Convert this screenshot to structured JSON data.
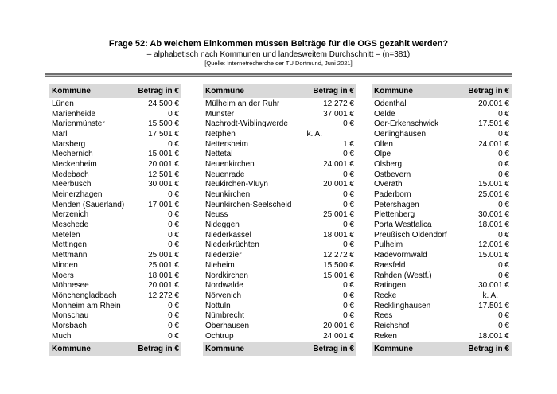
{
  "header": {
    "title": "Frage 52: Ab welchem Einkommen müssen Beiträge für die OGS gezahlt werden?",
    "subtitle": "– alphabetisch nach Kommunen und landesweitem Durchschnitt – (n=381)",
    "source": "[Quelle: Internetrecherche der TU Dortmund, Juni 2021]"
  },
  "table_labels": {
    "col_kommune": "Kommune",
    "col_betrag": "Betrag in €"
  },
  "colors": {
    "header_band": "#d9d9d9",
    "rule": "#6f6f6f",
    "text": "#000000"
  },
  "columns": [
    {
      "rows": [
        {
          "name": "Lünen",
          "value": "24.500 €"
        },
        {
          "name": "Marienheide",
          "value": "0 €"
        },
        {
          "name": "Marienmünster",
          "value": "15.500 €"
        },
        {
          "name": "Marl",
          "value": "17.501 €"
        },
        {
          "name": "Marsberg",
          "value": "0 €"
        },
        {
          "name": "Mechernich",
          "value": "15.001 €"
        },
        {
          "name": "Meckenheim",
          "value": "20.001 €"
        },
        {
          "name": "Medebach",
          "value": "12.501 €"
        },
        {
          "name": "Meerbusch",
          "value": "30.001 €"
        },
        {
          "name": "Meinerzhagen",
          "value": "0 €"
        },
        {
          "name": "Menden (Sauerland)",
          "value": "17.001 €"
        },
        {
          "name": "Merzenich",
          "value": "0 €"
        },
        {
          "name": "Meschede",
          "value": "0 €"
        },
        {
          "name": "Metelen",
          "value": "0 €"
        },
        {
          "name": "Mettingen",
          "value": "0 €"
        },
        {
          "name": "Mettmann",
          "value": "25.001 €"
        },
        {
          "name": "Minden",
          "value": "25.001 €"
        },
        {
          "name": "Moers",
          "value": "18.001 €"
        },
        {
          "name": "Möhnesee",
          "value": "20.001 €"
        },
        {
          "name": "Mönchengladbach",
          "value": "12.272 €"
        },
        {
          "name": "Monheim am Rhein",
          "value": "0 €"
        },
        {
          "name": "Monschau",
          "value": "0 €"
        },
        {
          "name": "Morsbach",
          "value": "0 €"
        },
        {
          "name": "Much",
          "value": "0 €"
        }
      ]
    },
    {
      "rows": [
        {
          "name": "Mülheim an der Ruhr",
          "value": "12.272 €"
        },
        {
          "name": "Münster",
          "value": "37.001 €"
        },
        {
          "name": "Nachrodt-Wiblingwerde",
          "value": "0 €"
        },
        {
          "name": "Netphen",
          "value": "k. A.",
          "pad": 40
        },
        {
          "name": "Nettersheim",
          "value": "1 €"
        },
        {
          "name": "Nettetal",
          "value": "0 €"
        },
        {
          "name": "Neuenkirchen",
          "value": "24.001 €"
        },
        {
          "name": "Neuenrade",
          "value": "0 €"
        },
        {
          "name": "Neukirchen-Vluyn",
          "value": "20.001 €"
        },
        {
          "name": "Neunkirchen",
          "value": "0 €"
        },
        {
          "name": "Neunkirchen-Seelscheid",
          "value": "0 €"
        },
        {
          "name": "Neuss",
          "value": "25.001 €"
        },
        {
          "name": "Nideggen",
          "value": "0 €"
        },
        {
          "name": "Niederkassel",
          "value": "18.001 €"
        },
        {
          "name": "Niederkrüchten",
          "value": "0 €"
        },
        {
          "name": "Niederzier",
          "value": "12.272 €"
        },
        {
          "name": "Nieheim",
          "value": "15.500 €"
        },
        {
          "name": "Nordkirchen",
          "value": "15.001 €"
        },
        {
          "name": "Nordwalde",
          "value": "0 €"
        },
        {
          "name": "Nörvenich",
          "value": "0 €"
        },
        {
          "name": "Nottuln",
          "value": "0 €"
        },
        {
          "name": "Nümbrecht",
          "value": "0 €"
        },
        {
          "name": "Oberhausen",
          "value": "20.001 €"
        },
        {
          "name": "Ochtrup",
          "value": "24.001 €"
        }
      ]
    },
    {
      "rows": [
        {
          "name": "Odenthal",
          "value": "20.001 €"
        },
        {
          "name": "Oelde",
          "value": "0 €"
        },
        {
          "name": "Oer-Erkenschwick",
          "value": "17.501 €"
        },
        {
          "name": "Oerlinghausen",
          "value": "0 €"
        },
        {
          "name": "Olfen",
          "value": "24.001 €"
        },
        {
          "name": "Olpe",
          "value": "0 €"
        },
        {
          "name": "Olsberg",
          "value": "0 €"
        },
        {
          "name": "Ostbevern",
          "value": "0 €"
        },
        {
          "name": "Overath",
          "value": "15.001 €"
        },
        {
          "name": "Paderborn",
          "value": "25.001 €"
        },
        {
          "name": "Petershagen",
          "value": "0 €"
        },
        {
          "name": "Plettenberg",
          "value": "30.001 €"
        },
        {
          "name": "Porta Westfalica",
          "value": "18.001 €"
        },
        {
          "name": "Preußisch Oldendorf",
          "value": "0 €"
        },
        {
          "name": "Pulheim",
          "value": "12.001 €"
        },
        {
          "name": "Radevormwald",
          "value": "15.001 €"
        },
        {
          "name": "Raesfeld",
          "value": "0 €"
        },
        {
          "name": "Rahden (Westf.)",
          "value": "0 €"
        },
        {
          "name": "Ratingen",
          "value": "30.001 €"
        },
        {
          "name": "Recke",
          "value": "k. A.",
          "pad": 14
        },
        {
          "name": "Recklinghausen",
          "value": "17.501 €"
        },
        {
          "name": "Rees",
          "value": "0 €"
        },
        {
          "name": "Reichshof",
          "value": "0 €"
        },
        {
          "name": "Reken",
          "value": "18.001 €"
        }
      ]
    }
  ]
}
